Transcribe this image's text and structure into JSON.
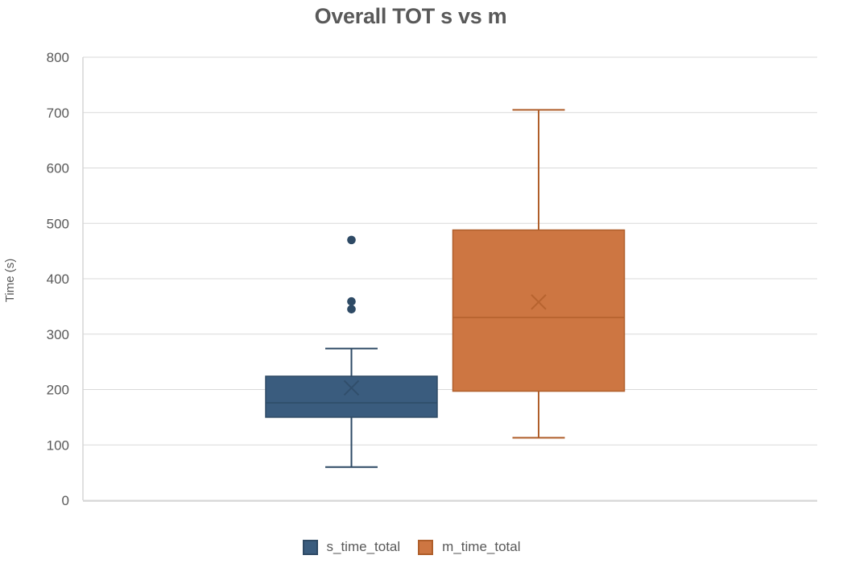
{
  "chart_data": {
    "type": "boxplot",
    "title": "Overall TOT s vs m",
    "ylabel": "Time (s)",
    "xlabel": "",
    "ylim": [
      0,
      800
    ],
    "yticks": [
      0,
      100,
      200,
      300,
      400,
      500,
      600,
      700,
      800
    ],
    "grid": true,
    "legend_position": "bottom",
    "series": [
      {
        "name": "s_time_total",
        "fill": "#3A5C7E",
        "border": "#2E4A65",
        "min": 60,
        "q1": 150,
        "median": 176,
        "q3": 224,
        "max": 274,
        "mean": 203,
        "outliers": [
          345,
          359,
          470
        ]
      },
      {
        "name": "m_time_total",
        "fill": "#CD7642",
        "border": "#AF5E2A",
        "min": 113,
        "q1": 197,
        "median": 330,
        "q3": 488,
        "max": 705,
        "mean": 358,
        "outliers": []
      }
    ]
  },
  "colors": {
    "text": "#595959",
    "gridline": "#D9D9D9",
    "axis_line": "#D6D6D6",
    "background": "#FFFFFF"
  }
}
